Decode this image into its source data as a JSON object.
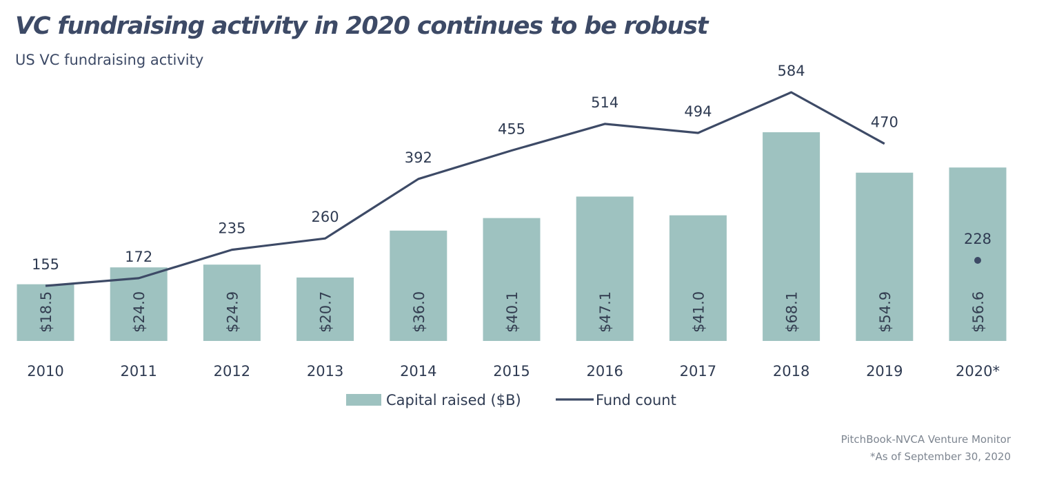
{
  "title": "VC fundraising activity in 2020 continues to be robust",
  "subtitle": "US VC fundraising activity",
  "source": "PitchBook-NVCA Venture Monitor",
  "footnote": "*As of September 30, 2020",
  "colors": {
    "bar": "#9ec2c0",
    "line": "#3d4a66",
    "text": "#2f3b52",
    "bar_label": "#333d50"
  },
  "chart_data": {
    "type": "bar",
    "categories": [
      "2010",
      "2011",
      "2012",
      "2013",
      "2014",
      "2015",
      "2016",
      "2017",
      "2018",
      "2019",
      "2020*"
    ],
    "series": [
      {
        "name": "Capital raised ($B)",
        "type": "bar",
        "values": [
          18.5,
          24.0,
          24.9,
          20.7,
          36.0,
          40.1,
          47.1,
          41.0,
          68.1,
          54.9,
          56.6
        ],
        "labels": [
          "$18.5",
          "$24.0",
          "$24.9",
          "$20.7",
          "$36.0",
          "$40.1",
          "$47.1",
          "$41.0",
          "$68.1",
          "$54.9",
          "$56.6"
        ]
      },
      {
        "name": "Fund count",
        "type": "line",
        "values": [
          155,
          172,
          235,
          260,
          392,
          455,
          514,
          494,
          584,
          470,
          228
        ],
        "labels": [
          "155",
          "172",
          "235",
          "260",
          "392",
          "455",
          "514",
          "494",
          "584",
          "470",
          "228"
        ],
        "note": "2020* fund count shown as a separate point, not connected to the line"
      }
    ],
    "xlabel": "",
    "ylabel": "",
    "gridlines": false,
    "legend_position": "bottom-center"
  }
}
